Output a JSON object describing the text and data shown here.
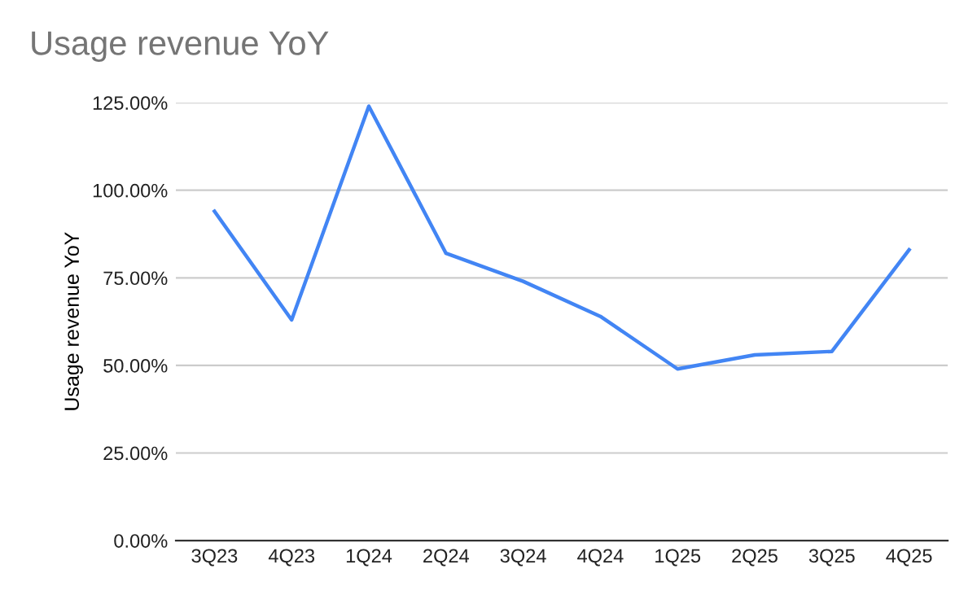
{
  "chart_data": {
    "type": "line",
    "title": "Usage revenue YoY",
    "ylabel": "Usage revenue YoY",
    "categories": [
      "3Q23",
      "4Q23",
      "1Q24",
      "2Q24",
      "3Q24",
      "4Q24",
      "1Q25",
      "2Q25",
      "3Q25",
      "4Q25"
    ],
    "series": [
      {
        "color": "#4285f4",
        "values": [
          94,
          63,
          124,
          82,
          74,
          64,
          49,
          53,
          54,
          83
        ]
      }
    ],
    "ylim": [
      0,
      125
    ],
    "yticks": [
      {
        "value": 0,
        "label": "0.00%"
      },
      {
        "value": 25,
        "label": "25.00%"
      },
      {
        "value": 50,
        "label": "50.00%"
      },
      {
        "value": 75,
        "label": "75.00%"
      },
      {
        "value": 100,
        "label": "100.00%"
      },
      {
        "value": 125,
        "label": "125.00%"
      }
    ],
    "grid": "y",
    "legend": false,
    "marker": "none",
    "line_style": "solid"
  }
}
